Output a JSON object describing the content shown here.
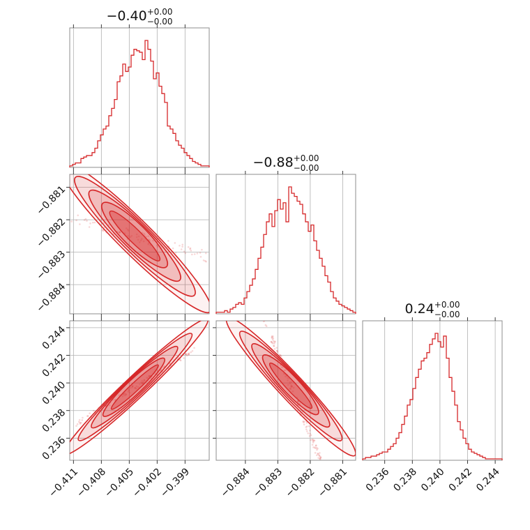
{
  "chart_data": {
    "type": "corner",
    "color": "#d62728",
    "grid": true,
    "diagonal": [
      {
        "type": "histogram",
        "title": {
          "value": "−0.40",
          "plus": "+0.00",
          "minus": "−0.00"
        },
        "x_range": [
          -0.4114,
          -0.3964
        ],
        "xticks": [
          -0.411,
          -0.408,
          -0.405,
          -0.402,
          -0.399
        ],
        "xtick_labels": [
          "−0.411",
          "−0.408",
          "−0.405",
          "−0.402",
          "−0.399"
        ],
        "counts": [
          1,
          2,
          3,
          3,
          6,
          7,
          8,
          8,
          10,
          13,
          18,
          22,
          26,
          28,
          35,
          40,
          46,
          58,
          62,
          70,
          65,
          68,
          76,
          80,
          79,
          78,
          73,
          86,
          80,
          72,
          60,
          64,
          55,
          50,
          44,
          28,
          26,
          23,
          18,
          15,
          13,
          10,
          8,
          6,
          4,
          3,
          2,
          1,
          1,
          1
        ]
      },
      {
        "type": "histogram",
        "title": {
          "value": "−0.88",
          "plus": "+0.00",
          "minus": "−0.00"
        },
        "x_range": [
          -0.8849,
          -0.8806
        ],
        "xticks": [
          -0.884,
          -0.883,
          -0.882,
          -0.881
        ],
        "xtick_labels": [
          "−0.884",
          "−0.883",
          "−0.882",
          "−0.881"
        ],
        "counts": [
          1,
          1,
          1,
          2,
          1,
          3,
          4,
          6,
          7,
          6,
          10,
          14,
          18,
          22,
          28,
          35,
          42,
          50,
          58,
          63,
          55,
          65,
          72,
          66,
          70,
          58,
          80,
          76,
          74,
          71,
          69,
          63,
          58,
          52,
          56,
          46,
          40,
          35,
          30,
          24,
          20,
          14,
          10,
          8,
          6,
          5,
          4,
          3,
          2,
          1
        ]
      },
      {
        "type": "histogram",
        "title": {
          "value": "0.24",
          "plus": "+0.00",
          "minus": "−0.00"
        },
        "x_range": [
          0.2344,
          0.2445
        ],
        "xticks": [
          0.236,
          0.238,
          0.24,
          0.242,
          0.244
        ],
        "xtick_labels": [
          "0.236",
          "0.238",
          "0.240",
          "0.242",
          "0.244"
        ],
        "counts": [
          1,
          2,
          2,
          3,
          3,
          4,
          5,
          6,
          6,
          8,
          10,
          12,
          16,
          20,
          26,
          32,
          40,
          44,
          52,
          60,
          66,
          72,
          74,
          78,
          84,
          88,
          92,
          86,
          82,
          90,
          74,
          60,
          50,
          40,
          28,
          22,
          16,
          12,
          8,
          6,
          5,
          4,
          3,
          2,
          1,
          1,
          1,
          1,
          1,
          1
        ]
      }
    ],
    "pairs": [
      {
        "row": 1,
        "col": 0,
        "type": "contour",
        "x_range": [
          -0.4114,
          -0.3964
        ],
        "y_range": [
          -0.8849,
          -0.8806
        ],
        "yticks": [
          -0.881,
          -0.882,
          -0.883,
          -0.884
        ],
        "ytick_labels": [
          "−0.881",
          "−0.882",
          "−0.883",
          "−0.884"
        ],
        "center": [
          -0.4044,
          -0.8825
        ],
        "major_axis": [
          -0.0095,
          0.0027
        ],
        "minor_width": 0.0004,
        "scatter_extent": [
          -0.0115,
          0.011
        ]
      },
      {
        "row": 2,
        "col": 0,
        "type": "contour",
        "x_range": [
          -0.4114,
          -0.3964
        ],
        "y_range": [
          0.2344,
          0.2445
        ],
        "yticks": [
          0.244,
          0.242,
          0.24,
          0.238,
          0.236
        ],
        "ytick_labels": [
          "0.244",
          "0.242",
          "0.240",
          "0.238",
          "0.236"
        ],
        "center": [
          -0.4044,
          0.2397
        ],
        "major_axis": [
          -0.009,
          -0.0057
        ],
        "minor_width": 0.0006,
        "scatter_extent": [
          -0.0075,
          0.0074
        ]
      },
      {
        "row": 2,
        "col": 1,
        "type": "contour",
        "x_range": [
          -0.8849,
          -0.8806
        ],
        "y_range": [
          0.2344,
          0.2445
        ],
        "center": [
          -0.8826,
          0.2398
        ],
        "major_axis": [
          -0.0023,
          0.0058
        ],
        "minor_width": 0.0007,
        "scatter_extent": [
          -0.0025,
          0.0023
        ]
      }
    ]
  }
}
